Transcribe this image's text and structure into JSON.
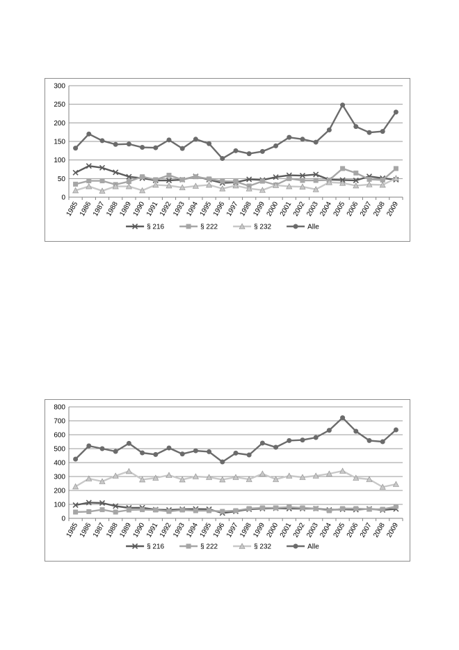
{
  "chart_data": [
    {
      "type": "line",
      "title": "",
      "xlabel": "",
      "ylabel": "",
      "ylim": [
        0,
        300
      ],
      "yticks": [
        0,
        50,
        100,
        150,
        200,
        250,
        300
      ],
      "grid": true,
      "legend_position": "bottom",
      "categories": [
        "1985",
        "1986",
        "1987",
        "1988",
        "1989",
        "1990",
        "1991",
        "1992",
        "1993",
        "1994",
        "1995",
        "1996",
        "1997",
        "1998",
        "1999",
        "2000",
        "2001",
        "2002",
        "2003",
        "2004",
        "2005",
        "2006",
        "2007",
        "2008",
        "2009"
      ],
      "series": [
        {
          "name": "§ 216",
          "marker": "x",
          "color": "#5a5a5a",
          "values": [
            66,
            84,
            79,
            67,
            55,
            51,
            45,
            45,
            47,
            56,
            47,
            38,
            40,
            48,
            46,
            54,
            59,
            58,
            61,
            47,
            46,
            45,
            56,
            51,
            47
          ]
        },
        {
          "name": "§ 222",
          "marker": "square",
          "color": "#a6a6a6",
          "values": [
            35,
            44,
            44,
            34,
            42,
            55,
            47,
            59,
            47,
            55,
            49,
            43,
            42,
            30,
            43,
            33,
            50,
            45,
            45,
            46,
            77,
            65,
            48,
            46,
            77
          ]
        },
        {
          "name": "§ 232",
          "marker": "triangle",
          "color": "#c8c8c8",
          "values": [
            18,
            29,
            17,
            29,
            29,
            18,
            33,
            31,
            26,
            30,
            33,
            23,
            31,
            23,
            19,
            32,
            29,
            28,
            21,
            40,
            38,
            31,
            34,
            33,
            51
          ]
        },
        {
          "name": "Alle",
          "marker": "circle",
          "color": "#6b6b6b",
          "values": [
            132,
            170,
            152,
            142,
            143,
            134,
            133,
            154,
            131,
            156,
            144,
            104,
            125,
            117,
            123,
            138,
            161,
            156,
            148,
            181,
            248,
            190,
            174,
            177,
            229
          ]
        }
      ]
    },
    {
      "type": "line",
      "title": "",
      "xlabel": "",
      "ylabel": "",
      "ylim": [
        0,
        800
      ],
      "yticks": [
        0,
        100,
        200,
        300,
        400,
        500,
        600,
        700,
        800
      ],
      "grid": true,
      "legend_position": "bottom",
      "categories": [
        "1985",
        "1986",
        "1987",
        "1988",
        "1989",
        "1990",
        "1991",
        "1992",
        "1993",
        "1994",
        "1995",
        "1996",
        "1997",
        "1998",
        "1999",
        "2000",
        "2001",
        "2002",
        "2003",
        "2004",
        "2005",
        "2006",
        "2007",
        "2008",
        "2009"
      ],
      "series": [
        {
          "name": "§ 216",
          "marker": "x",
          "color": "#5a5a5a",
          "values": [
            95,
            113,
            110,
            88,
            75,
            76,
            63,
            60,
            65,
            67,
            65,
            38,
            50,
            65,
            70,
            72,
            70,
            70,
            70,
            60,
            65,
            62,
            68,
            60,
            67
          ]
        },
        {
          "name": "§ 222",
          "marker": "square",
          "color": "#a6a6a6",
          "values": [
            45,
            48,
            62,
            45,
            60,
            62,
            60,
            50,
            60,
            55,
            55,
            50,
            55,
            70,
            75,
            75,
            80,
            75,
            70,
            55,
            70,
            70,
            65,
            65,
            85
          ]
        },
        {
          "name": "§ 232",
          "marker": "triangle",
          "color": "#c8c8c8",
          "values": [
            228,
            285,
            265,
            305,
            338,
            278,
            290,
            310,
            278,
            300,
            295,
            278,
            295,
            280,
            320,
            280,
            305,
            295,
            305,
            320,
            340,
            290,
            280,
            225,
            245
          ]
        },
        {
          "name": "Alle",
          "marker": "circle",
          "color": "#6b6b6b",
          "values": [
            425,
            520,
            500,
            480,
            538,
            470,
            458,
            505,
            462,
            485,
            478,
            405,
            468,
            455,
            540,
            510,
            558,
            562,
            580,
            632,
            722,
            625,
            558,
            550,
            635
          ]
        }
      ]
    }
  ]
}
